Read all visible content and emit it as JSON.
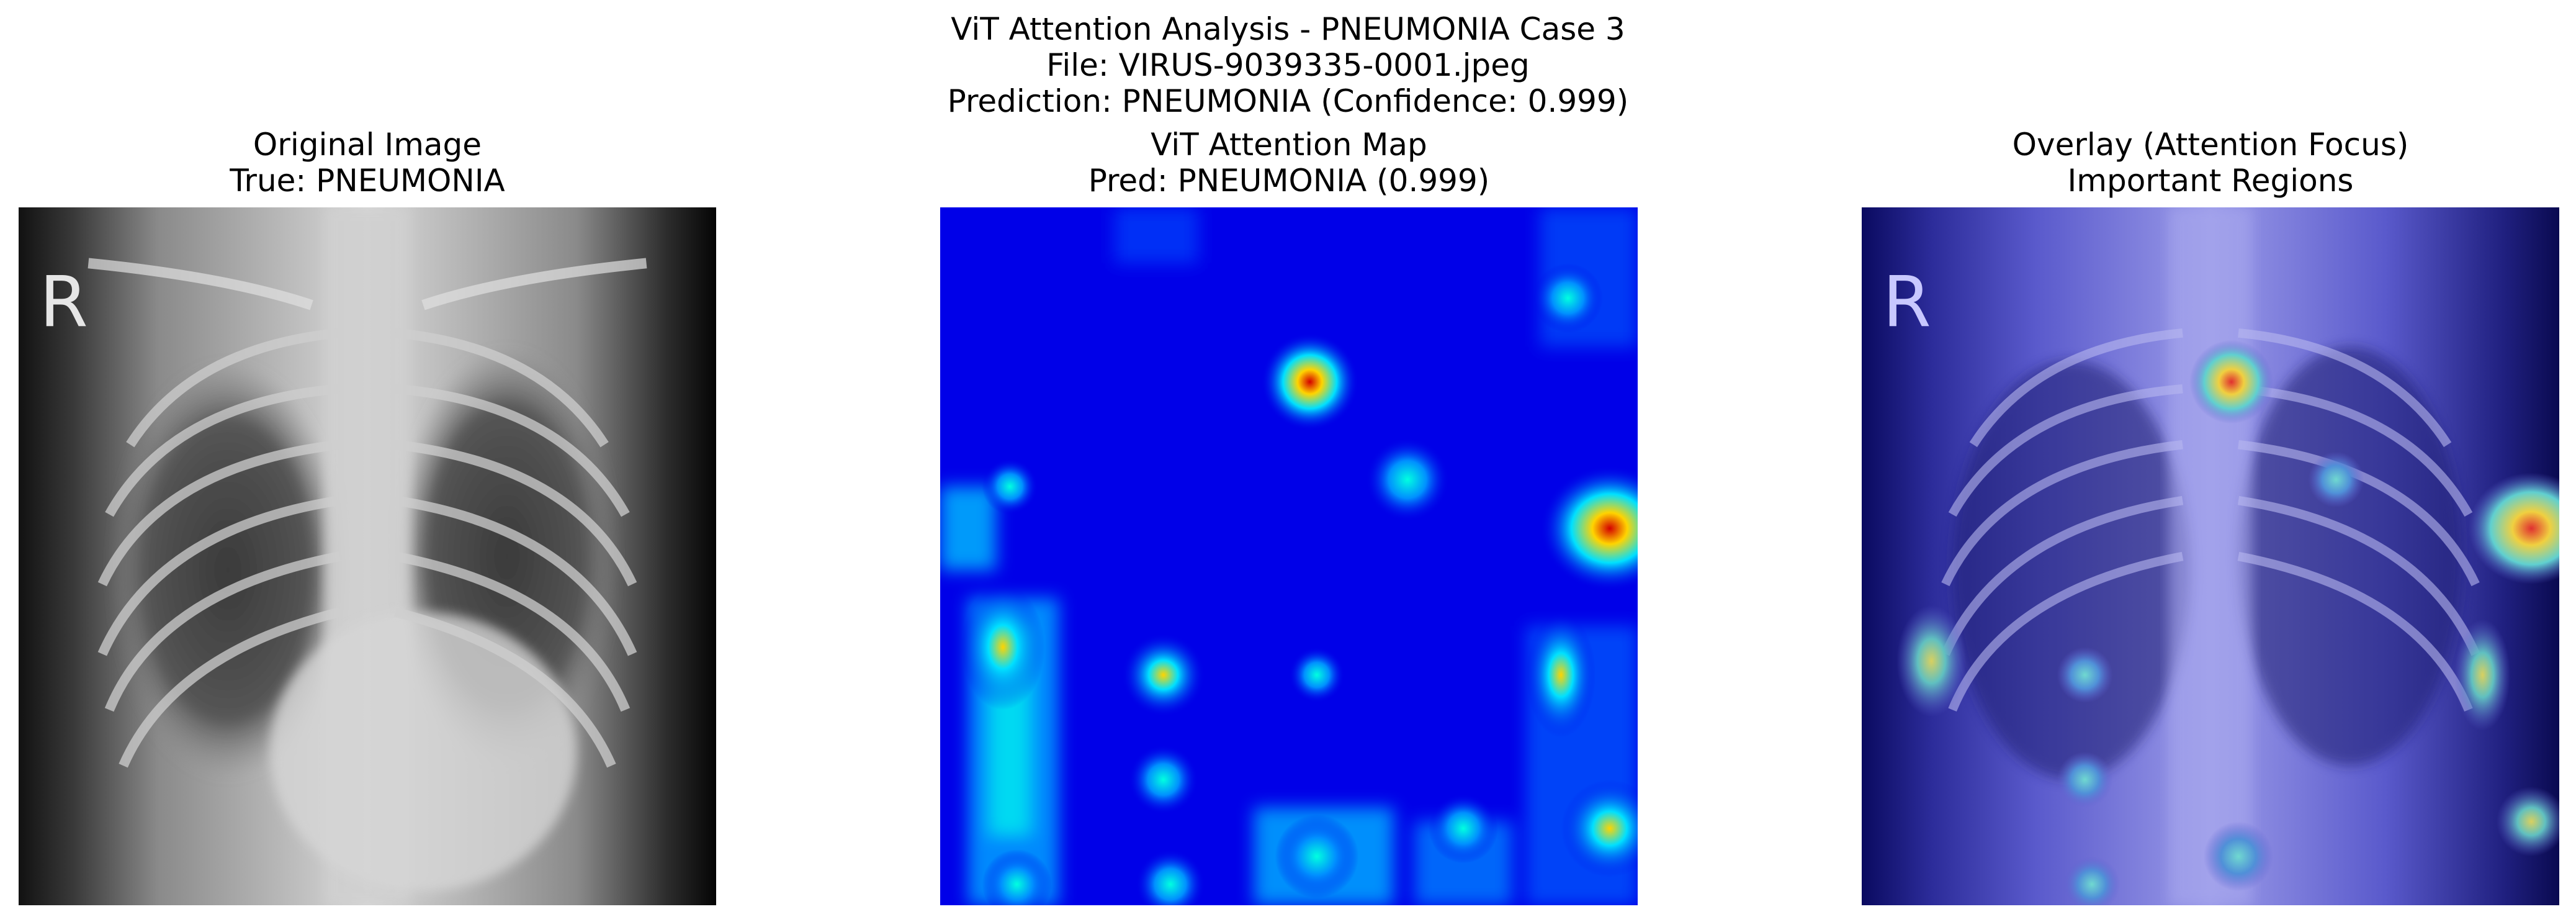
{
  "figure": {
    "title_line1": "ViT Attention Analysis - PNEUMONIA Case 3",
    "title_line2": "File: VIRUS-9039335-0001.jpeg",
    "title_line3": "Prediction: PNEUMONIA (Confidence: 0.999)"
  },
  "panels": [
    {
      "title_line1": "Original Image",
      "title_line2": "True: PNEUMONIA",
      "image": "chest-xray",
      "marker_letter": "R"
    },
    {
      "title_line1": "ViT Attention Map",
      "title_line2": "Pred: PNEUMONIA (0.999)",
      "image": "attention-heatmap",
      "colormap": "jet"
    },
    {
      "title_line1": "Overlay (Attention Focus)",
      "title_line2": "Important Regions",
      "image": "xray-with-attention-overlay",
      "marker_letter": "R"
    }
  ],
  "colors": {
    "heat_background": "#0000e8",
    "heat_hot": "#d40000",
    "heat_warm": "#ffd400",
    "heat_cool": "#00e0ff"
  }
}
